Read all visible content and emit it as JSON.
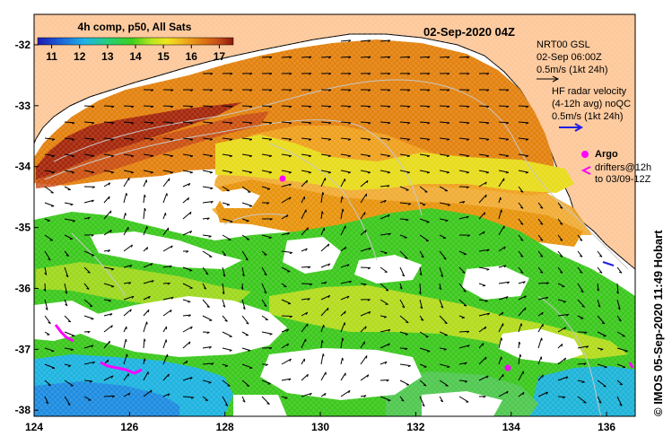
{
  "colorbar": {
    "title": "4h comp, p50, All Sats",
    "ticks": [
      "11",
      "12",
      "13",
      "14",
      "15",
      "16",
      "17"
    ],
    "min": 10.5,
    "max": 17.5,
    "stops": [
      "#1b1bb3",
      "#1e64d8",
      "#1fb4e6",
      "#27cf7a",
      "#3ccf1e",
      "#b7e61e",
      "#f0e61e",
      "#f0b41e",
      "#e07a12",
      "#c8501a",
      "#8b1a0a"
    ]
  },
  "timestamp": "02-Sep-2020 04Z",
  "legend": {
    "nrt_title": "NRT00 GSL",
    "nrt_time": "02-Sep 06:00Z",
    "nrt_scale": "0.5m/s (1kt 24h)",
    "hf_title": "HF radar velocity",
    "hf_subtitle": "(4-12h avg) noQC",
    "hf_scale": "0.5m/s (1kt 24h)",
    "argo_label": "Argo",
    "drifters_label": "drifters@12h",
    "drifters_to": "to 03/09-12Z"
  },
  "credit": "© IMOS 05-Sep-2020 11:49 Hobart",
  "axes": {
    "lon_ticks": [
      "124",
      "126",
      "128",
      "130",
      "132",
      "134",
      "136"
    ],
    "lat_ticks": [
      "-32",
      "-33",
      "-34",
      "-35",
      "-36",
      "-37",
      "-38"
    ],
    "lon_values": [
      124,
      126,
      128,
      130,
      132,
      134,
      136
    ],
    "lat_values": [
      -32,
      -33,
      -34,
      -35,
      -36,
      -37,
      -38
    ],
    "lon_range": [
      124,
      136.6
    ],
    "lat_range": [
      -31.5,
      -38.1
    ]
  },
  "colors": {
    "land": "#fdc89a",
    "no_data": "#ffffff",
    "argo": "#ff00ff",
    "hf_arrow": "#1e1ee6"
  }
}
